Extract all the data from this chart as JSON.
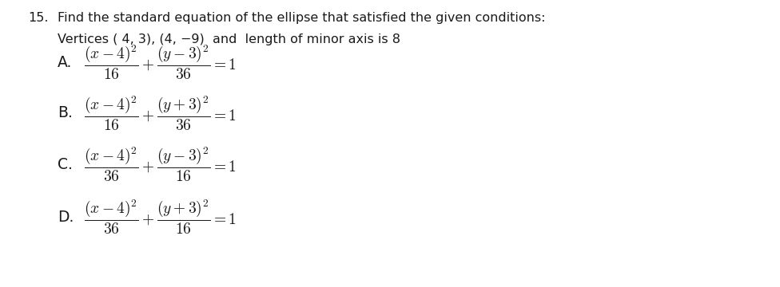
{
  "background_color": "#ffffff",
  "figsize": [
    9.76,
    3.6
  ],
  "dpi": 100,
  "question_number": "15.",
  "question_line1": "Find the standard equation of the ellipse that satisfied the given conditions:",
  "question_line2": "Vertices ( 4, 3), (4, −9)  and  length of minor axis is 8",
  "choices": [
    {
      "label": "A.",
      "expr": "$\\dfrac{(x-4)^2}{16}+\\dfrac{(y-3)^2}{36}=1$"
    },
    {
      "label": "B.",
      "expr": "$\\dfrac{(x-4)^2}{16}+\\dfrac{(y+3)^2}{36}=1$"
    },
    {
      "label": "C.",
      "expr": "$\\dfrac{(x-4)^2}{36}+\\dfrac{(y-3)^2}{16}=1$"
    },
    {
      "label": "D.",
      "expr": "$\\dfrac{(x-4)^2}{36}+\\dfrac{(y+3)^2}{16}=1$"
    }
  ],
  "text_color": "#1a1a1a",
  "font_size_question": 11.5,
  "font_size_label": 13.5,
  "font_size_expr": 14
}
